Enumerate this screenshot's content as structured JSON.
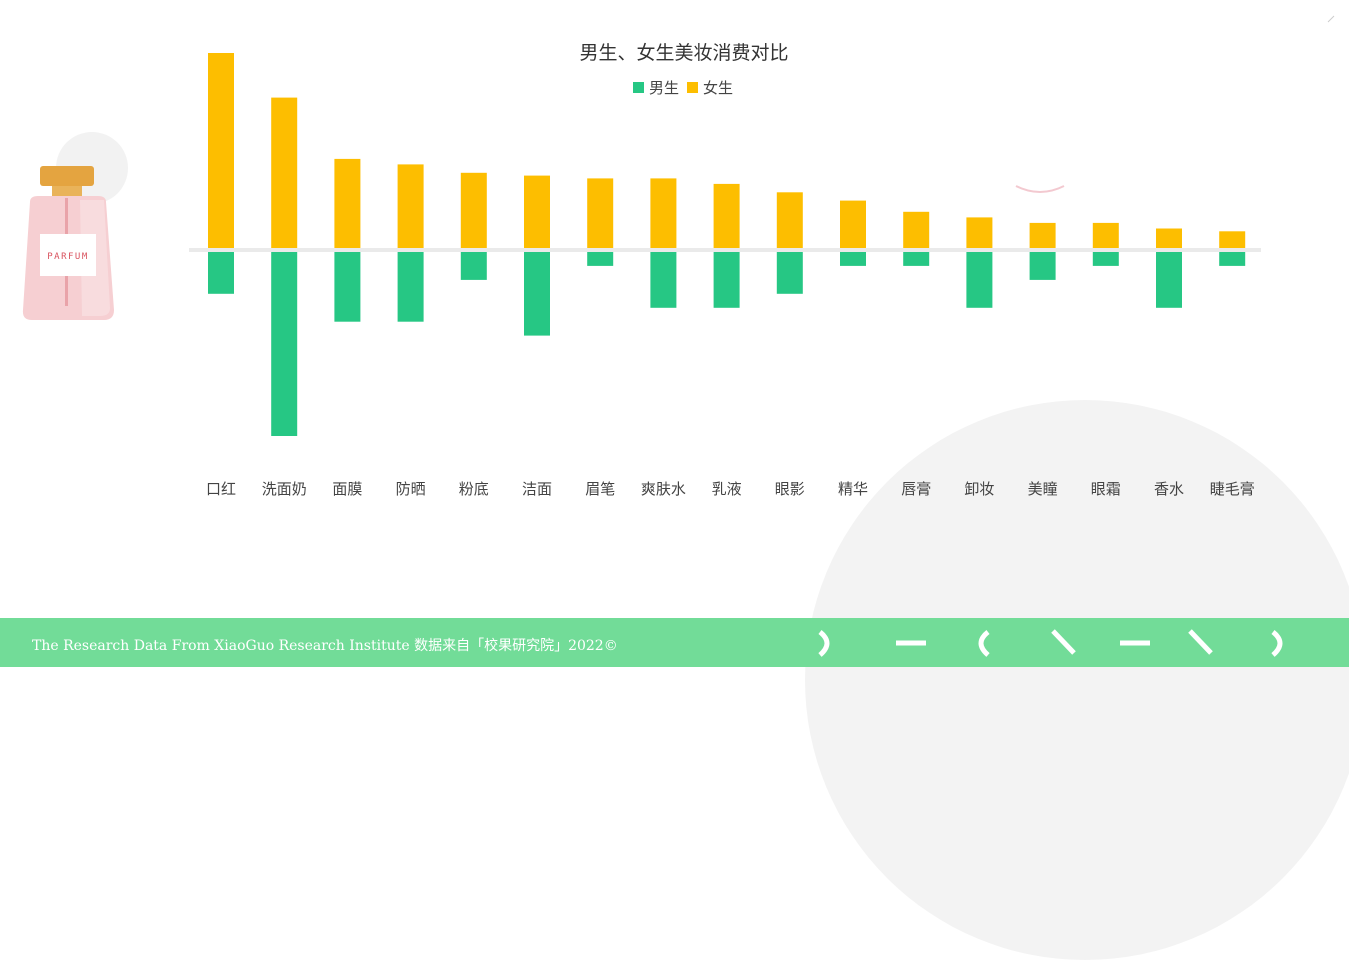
{
  "colors": {
    "male": "#26c784",
    "female": "#fdbe00",
    "baseline": "#eaeaea",
    "footer": "#72dc98"
  },
  "icons": [
    "perfume-bottle-icon"
  ],
  "perfume": {
    "label": "PARFUM"
  },
  "footer": {
    "text": "The Research Data  From XiaoGuo Research Institute 数据来自「校果研究院」2022©"
  },
  "chart_data": {
    "type": "bar",
    "title": "男生、女生美妆消费对比",
    "legend_position": "top-center",
    "grid": false,
    "ylim": [
      -66,
      70
    ],
    "categories": [
      "口红",
      "洗面奶",
      "面膜",
      "防晒",
      "粉底",
      "洁面",
      "眉笔",
      "爽肤水",
      "乳液",
      "眼影",
      "精华",
      "唇膏",
      "卸妆",
      "美瞳",
      "眼霜",
      "香水",
      "睫毛膏"
    ],
    "series": [
      {
        "name": "男生",
        "direction": "down",
        "values": [
          15,
          66,
          25,
          25,
          10,
          30,
          5,
          20,
          20,
          15,
          5,
          5,
          20,
          10,
          5,
          20,
          5
        ]
      },
      {
        "name": "女生",
        "direction": "up",
        "values": [
          70,
          54,
          32,
          30,
          27,
          26,
          25,
          25,
          23,
          20,
          17,
          13,
          11,
          9,
          9,
          7,
          6
        ]
      }
    ]
  }
}
